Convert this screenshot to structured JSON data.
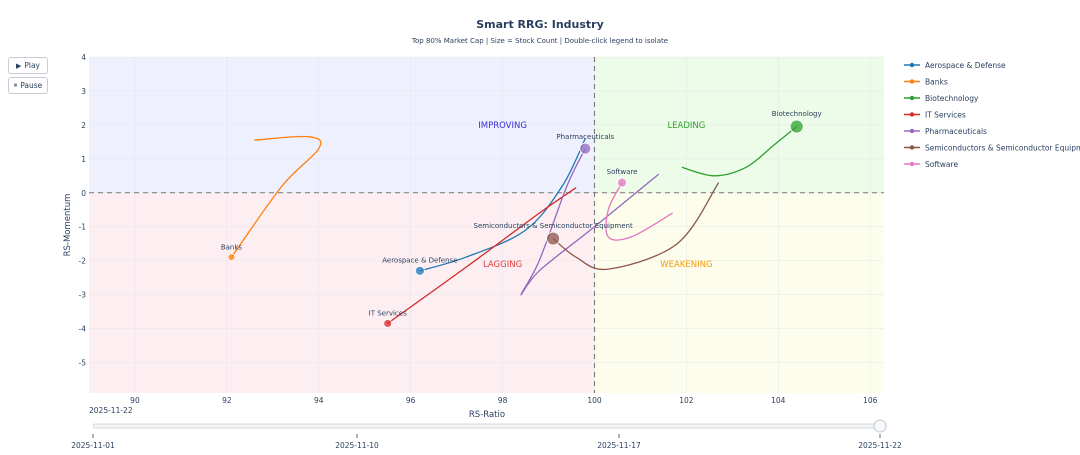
{
  "controls": {
    "play_label": "Play",
    "pause_label": "Pause",
    "play_glyph": "▶",
    "pause_glyph": "⏸"
  },
  "chart_data": {
    "type": "scatter",
    "title": "Smart RRG: Industry",
    "subtitle": "Top 80% Market Cap | Size = Stock Count | Double-click legend to isolate",
    "xlabel": "RS-Ratio",
    "ylabel": "RS-Momentum",
    "xlim": [
      89,
      106.3
    ],
    "ylim": [
      -5.9,
      4
    ],
    "xticks": [
      90,
      92,
      94,
      96,
      98,
      100,
      102,
      104,
      106
    ],
    "yticks": [
      4,
      3,
      2,
      1,
      0,
      -1,
      -2,
      -3,
      -4,
      -5
    ],
    "center": {
      "x": 100,
      "y": 0
    },
    "grid": true,
    "legend_position": "right",
    "quadrants": [
      {
        "name": "IMPROVING",
        "color": "#3b2bd9",
        "fill": "#eef0fd",
        "x": 98,
        "y": 2
      },
      {
        "name": "LEADING",
        "color": "#2ca02c",
        "fill": "#edfbe9",
        "x": 102,
        "y": 2
      },
      {
        "name": "LAGGING",
        "color": "#e03c3c",
        "fill": "#fdeff1",
        "x": 98,
        "y": -2.1
      },
      {
        "name": "WEAKENING",
        "color": "#f39c12",
        "fill": "#fdfdeb",
        "x": 102,
        "y": -2.1
      }
    ],
    "series": [
      {
        "name": "Aerospace & Defense",
        "color": "#1f77b4",
        "size": 9,
        "point_label": "Aerospace & Defense",
        "trail": [
          [
            99.8,
            1.6
          ],
          [
            99.3,
            0.2
          ],
          [
            98.5,
            -1.1
          ],
          [
            97.2,
            -1.9
          ],
          [
            96.2,
            -2.3
          ]
        ]
      },
      {
        "name": "Banks",
        "color": "#ff7f0e",
        "size": 7,
        "point_label": "Banks",
        "trail": [
          [
            92.6,
            1.55
          ],
          [
            93.8,
            1.65
          ],
          [
            94.0,
            1.3
          ],
          [
            93.2,
            0.2
          ],
          [
            92.1,
            -1.9
          ]
        ]
      },
      {
        "name": "Biotechnology",
        "color": "#2ca02c",
        "size": 13,
        "point_label": "Biotechnology",
        "trail": [
          [
            101.9,
            0.75
          ],
          [
            102.6,
            0.5
          ],
          [
            103.3,
            0.75
          ],
          [
            103.9,
            1.4
          ],
          [
            104.4,
            1.95
          ]
        ]
      },
      {
        "name": "IT Services",
        "color": "#d62728",
        "size": 8,
        "point_label": "IT Services",
        "trail": [
          [
            99.6,
            0.15
          ],
          [
            98.8,
            -0.6
          ],
          [
            97.2,
            -2.2
          ],
          [
            95.5,
            -3.85
          ]
        ]
      },
      {
        "name": "Pharmaceuticals",
        "color": "#9467bd",
        "size": 11,
        "point_label": "Pharmaceuticals",
        "trail": [
          [
            101.4,
            0.55
          ],
          [
            100.0,
            -1.0
          ],
          [
            98.8,
            -2.3
          ],
          [
            98.4,
            -3.0
          ],
          [
            98.8,
            -2.0
          ],
          [
            99.4,
            0.2
          ],
          [
            99.8,
            1.3
          ]
        ]
      },
      {
        "name": "Semiconductors & Semiconductor Equipment",
        "color": "#8c564b",
        "size": 13,
        "point_label": "Semiconductors & Semiconductor Equipment",
        "trail": [
          [
            102.7,
            0.3
          ],
          [
            101.8,
            -1.5
          ],
          [
            100.3,
            -2.25
          ],
          [
            99.6,
            -1.9
          ],
          [
            99.1,
            -1.35
          ]
        ]
      },
      {
        "name": "Software",
        "color": "#e377c2",
        "size": 9,
        "point_label": "Software",
        "trail": [
          [
            101.7,
            -0.6
          ],
          [
            100.8,
            -1.3
          ],
          [
            100.3,
            -1.3
          ],
          [
            100.3,
            -0.5
          ],
          [
            100.6,
            0.3
          ]
        ]
      }
    ],
    "slider": {
      "current_label": "2025-11-22",
      "ticks": [
        "2025-11-01",
        "2025-11-10",
        "2025-11-17",
        "2025-11-22"
      ],
      "value": 1.0
    }
  }
}
